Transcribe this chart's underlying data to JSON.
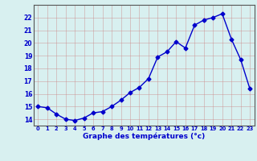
{
  "hours": [
    0,
    1,
    2,
    3,
    4,
    5,
    6,
    7,
    8,
    9,
    10,
    11,
    12,
    13,
    14,
    15,
    16,
    17,
    18,
    19,
    20,
    21,
    22,
    23
  ],
  "temperatures": [
    15.0,
    14.9,
    14.4,
    14.0,
    13.9,
    14.1,
    14.5,
    14.6,
    15.0,
    15.5,
    16.1,
    16.5,
    17.2,
    18.9,
    19.3,
    20.1,
    19.6,
    21.4,
    21.8,
    22.0,
    22.3,
    20.3,
    18.7,
    16.4
  ],
  "line_color": "#0000cc",
  "marker": "D",
  "marker_size": 2.5,
  "bg_color": "#d8f0f0",
  "grid_color": "#cc8888",
  "xlabel": "Graphe des températures (°c)",
  "ylim_min": 13.5,
  "ylim_max": 23.0,
  "yticks": [
    14,
    15,
    16,
    17,
    18,
    19,
    20,
    21,
    22
  ],
  "text_color": "#0000cc",
  "spine_color": "#555555"
}
